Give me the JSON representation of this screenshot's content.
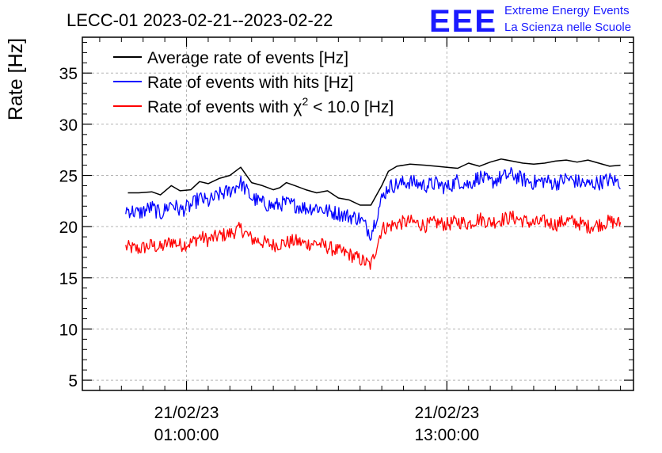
{
  "title": "LECC-01 2023-02-21--2023-02-22",
  "logo": {
    "mark": "EEE",
    "line1": "Extreme Energy Events",
    "line2": "La Scienza nelle Scuole"
  },
  "colors": {
    "average": "#000000",
    "hits": "#0000ff",
    "chi2": "#ff0000",
    "grid": "#b4b4b4",
    "logo": "#1a1aff"
  },
  "chart_data": {
    "type": "line",
    "title": "LECC-01 2023-02-21--2023-02-22",
    "ylabel": "Rate [Hz]",
    "xlabel": "",
    "ylim": [
      4,
      38.5
    ],
    "xlim_hours": [
      -3.8,
      21.6
    ],
    "x_unit": "hours from 21/02/23 00:00:00",
    "yticks": [
      5,
      10,
      15,
      20,
      25,
      30,
      35
    ],
    "xticks": [
      {
        "hour": 1,
        "line1": "21/02/23",
        "line2": "01:00:00"
      },
      {
        "hour": 13,
        "line1": "21/02/23",
        "line2": "13:00:00"
      }
    ],
    "grid": true,
    "legend_position": "top-left",
    "series": [
      {
        "name": "Average rate of events [Hz]",
        "key": "average",
        "x": [
          -1.7,
          -1.2,
          -0.6,
          -0.2,
          0.3,
          0.7,
          1.2,
          1.6,
          2.0,
          2.5,
          3.0,
          3.5,
          4.0,
          4.5,
          5.0,
          5.3,
          5.6,
          6.0,
          6.5,
          7.0,
          7.5,
          8.0,
          8.5,
          9.0,
          9.5,
          10.0,
          10.3,
          10.7,
          11.3,
          12.0,
          12.5,
          13.0,
          13.5,
          14.0,
          14.5,
          15.0,
          15.5,
          16.0,
          16.5,
          17.0,
          17.5,
          18.0,
          18.5,
          19.0,
          19.5,
          20.0,
          20.5,
          21.0
        ],
        "y": [
          23.3,
          23.3,
          23.4,
          23.1,
          24.0,
          23.5,
          23.6,
          24.4,
          24.2,
          24.7,
          25.0,
          25.8,
          24.3,
          24.0,
          23.6,
          23.8,
          24.3,
          24.0,
          23.6,
          23.3,
          23.5,
          22.8,
          22.6,
          22.1,
          22.1,
          24.0,
          25.4,
          25.9,
          26.1,
          26.0,
          25.9,
          25.8,
          25.7,
          26.2,
          25.9,
          26.3,
          26.6,
          26.4,
          26.2,
          26.1,
          26.2,
          26.4,
          26.5,
          26.3,
          26.5,
          26.2,
          25.9,
          26.0
        ]
      },
      {
        "name": "Rate of events with hits [Hz]",
        "key": "hits",
        "x": [
          -1.8,
          -1.2,
          -0.6,
          -0.2,
          0.3,
          0.7,
          1.2,
          1.6,
          2.0,
          2.5,
          3.0,
          3.5,
          4.0,
          4.5,
          5.0,
          5.5,
          6.0,
          6.5,
          7.0,
          7.5,
          8.0,
          8.5,
          9.0,
          9.5,
          10.0,
          10.3,
          10.7,
          11.3,
          12.0,
          12.5,
          13.0,
          13.5,
          14.0,
          14.5,
          15.0,
          15.5,
          16.0,
          16.5,
          17.0,
          17.5,
          18.0,
          18.5,
          19.0,
          19.5,
          20.0,
          20.5,
          21.0
        ],
        "y": [
          21.7,
          21.3,
          21.9,
          21.2,
          22.3,
          21.6,
          22.0,
          22.8,
          22.4,
          23.1,
          23.5,
          24.3,
          22.8,
          22.3,
          22.0,
          22.3,
          22.1,
          21.8,
          21.9,
          21.5,
          21.3,
          21.0,
          20.8,
          19.3,
          22.7,
          23.9,
          24.1,
          24.4,
          24.0,
          24.2,
          23.8,
          24.5,
          24.1,
          24.9,
          24.3,
          24.8,
          25.1,
          24.6,
          24.3,
          24.5,
          24.2,
          24.7,
          24.4,
          24.1,
          24.3,
          24.6,
          24.3
        ],
        "noise": 0.75
      },
      {
        "name": "Rate of events with χ² < 10.0 [Hz]",
        "key": "chi2",
        "x": [
          -1.8,
          -1.2,
          -0.6,
          -0.2,
          0.3,
          0.7,
          1.2,
          1.6,
          2.0,
          2.5,
          3.0,
          3.5,
          4.0,
          4.5,
          5.0,
          5.5,
          6.0,
          6.5,
          7.0,
          7.5,
          8.0,
          8.5,
          9.0,
          9.5,
          10.0,
          10.3,
          10.7,
          11.3,
          12.0,
          12.5,
          13.0,
          13.5,
          14.0,
          14.5,
          15.0,
          15.5,
          16.0,
          16.5,
          17.0,
          17.5,
          18.0,
          18.5,
          19.0,
          19.5,
          20.0,
          20.5,
          21.0
        ],
        "y": [
          18.0,
          17.8,
          18.2,
          17.9,
          18.6,
          18.2,
          18.4,
          19.0,
          18.7,
          19.1,
          19.3,
          19.8,
          18.8,
          18.5,
          18.2,
          18.4,
          18.6,
          18.3,
          18.4,
          18.0,
          17.6,
          17.3,
          16.8,
          16.2,
          19.8,
          20.0,
          20.3,
          20.5,
          20.1,
          20.4,
          20.2,
          20.5,
          20.3,
          20.8,
          20.4,
          20.7,
          20.9,
          20.6,
          20.3,
          20.5,
          20.2,
          20.6,
          20.4,
          20.0,
          20.2,
          20.5,
          20.3
        ],
        "noise": 0.7
      }
    ]
  },
  "legend": [
    {
      "key": "average",
      "label": "Average rate of events [Hz]"
    },
    {
      "key": "hits",
      "label": "Rate of events with hits [Hz]"
    },
    {
      "key": "chi2",
      "label_pre": "Rate of events with χ",
      "label_sup": "2",
      "label_post": " < 10.0 [Hz]"
    }
  ]
}
